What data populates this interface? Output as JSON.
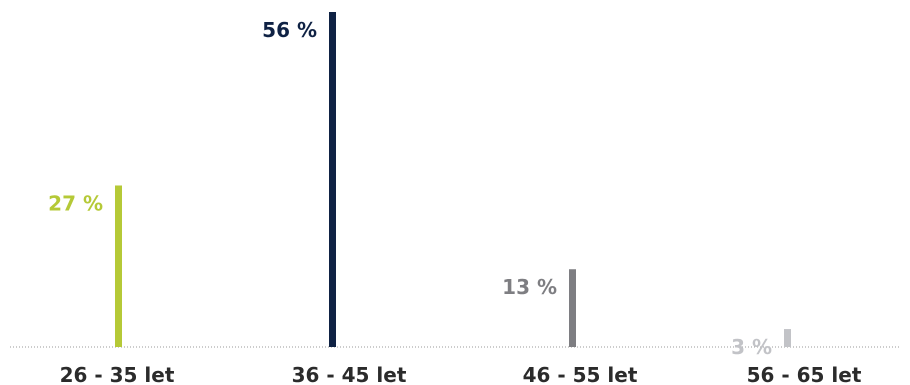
{
  "chart_data": {
    "type": "bar",
    "categories": [
      "26 - 35 let",
      "36 - 45 let",
      "46 - 55 let",
      "56 - 65 let"
    ],
    "values": [
      27,
      56,
      13,
      3
    ],
    "value_labels": [
      "27 %",
      "56 %",
      "13 %",
      "3 %"
    ],
    "colors": [
      "#b5c937",
      "#0f2244",
      "#7e7e82",
      "#c2c3c7"
    ],
    "category_label_color": "#2b2b2b",
    "ylim": [
      0,
      56
    ],
    "grid": false,
    "legend": "none",
    "title": "",
    "xlabel": "",
    "ylabel": ""
  }
}
